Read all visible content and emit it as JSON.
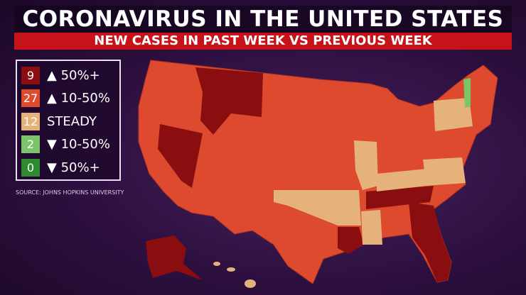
{
  "header": {
    "title": "CORONAVIRUS IN THE UNITED STATES",
    "subtitle": "NEW CASES IN PAST WEEK VS PREVIOUS WEEK"
  },
  "legend": [
    {
      "count": 9,
      "label": "▲ 50%+",
      "color": "#8a0e10"
    },
    {
      "count": 27,
      "label": "▲ 10-50%",
      "color": "#dd4a2e"
    },
    {
      "count": 12,
      "label": "STEADY",
      "color": "#e6b27c"
    },
    {
      "count": 2,
      "label": "▼ 10-50%",
      "color": "#7cc46a"
    },
    {
      "count": 0,
      "label": "▼ 50%+",
      "color": "#2e8a2e"
    }
  ],
  "source": "SOURCE: JOHNS HOPKINS UNIVERSITY"
}
